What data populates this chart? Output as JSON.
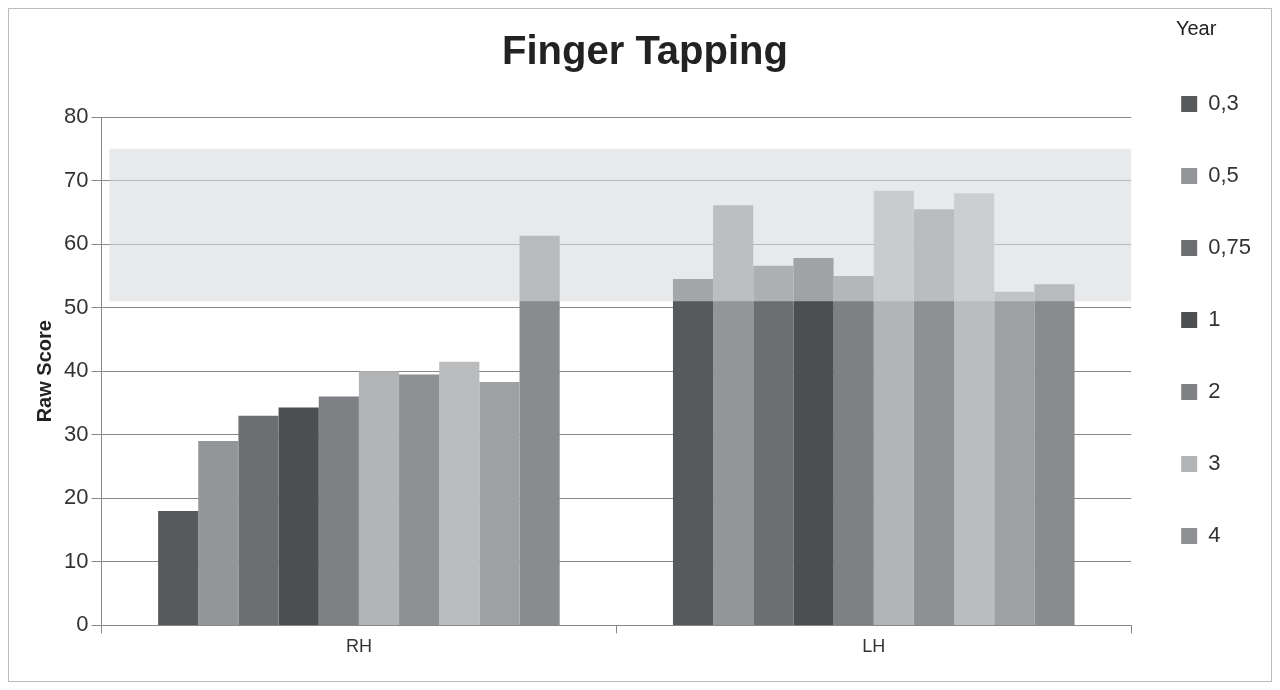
{
  "chart_data": {
    "type": "bar",
    "title": "Finger Tapping",
    "ylabel": "Raw Score",
    "legend_title": "Year",
    "categories": [
      "RH",
      "LH"
    ],
    "series": [
      {
        "name": "0,3",
        "color": "#58595b",
        "values": [
          18,
          54.5
        ]
      },
      {
        "name": "0,5",
        "color": "#939598",
        "values": [
          29,
          66.1
        ]
      },
      {
        "name": "0,75",
        "color": "#6d6e71",
        "values": [
          33,
          56.6
        ]
      },
      {
        "name": "1",
        "color": "#4d4e50",
        "values": [
          34.3,
          57.8
        ]
      },
      {
        "name": "2",
        "color": "#7f8084",
        "values": [
          36,
          55
        ]
      },
      {
        "name": "3",
        "color": "#b3b4b6",
        "values": [
          40,
          68.4
        ]
      },
      {
        "name": "4",
        "color": "#8f9094",
        "values": [
          39.5,
          65.5
        ]
      },
      {
        "color": "#bbbcbe",
        "values": [
          41.5,
          68
        ]
      },
      {
        "color": "#9fa0a3",
        "values": [
          38.3,
          52.5
        ]
      },
      {
        "color": "#8a8b8e",
        "values": [
          61.3,
          53.7
        ]
      }
    ],
    "ylim": [
      0,
      80
    ],
    "yticks": [
      0,
      10,
      20,
      30,
      40,
      50,
      60,
      70,
      80
    ],
    "grid": "y",
    "legend": "right",
    "bands": [
      {
        "axis": "y",
        "from": 51,
        "to": 75,
        "color": "#d9dadc"
      }
    ]
  }
}
